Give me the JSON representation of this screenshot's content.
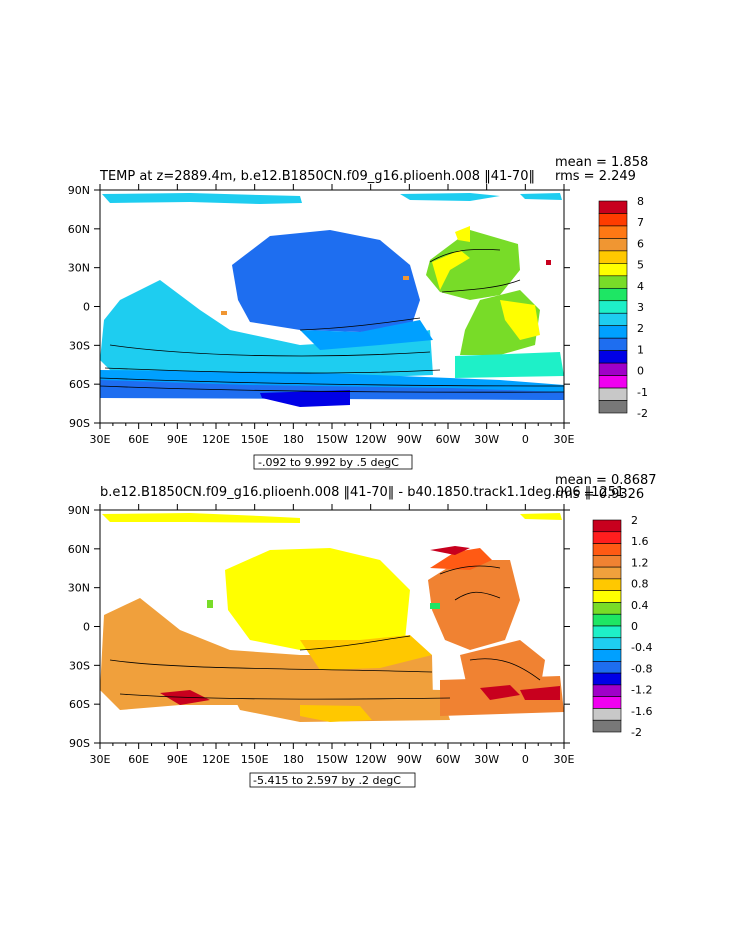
{
  "chart_data": [
    {
      "type": "heatmap",
      "title": "TEMP at z=2889.4m, b.e12.B1850CN.f09_g16.plioenh.008 ‖41-70‖",
      "mean_label": "mean = 1.858",
      "rms_label": "rms = 2.249",
      "range_label": "-.092 to 9.992 by .5 degC",
      "x_ticks": [
        "30E",
        "60E",
        "90E",
        "120E",
        "150E",
        "180",
        "150W",
        "120W",
        "90W",
        "60W",
        "30W",
        "0",
        "30E"
      ],
      "y_ticks": [
        "90N",
        "60N",
        "30N",
        "0",
        "30S",
        "60S",
        "90S"
      ],
      "colorbar": {
        "labels": [
          "8",
          "7",
          "6",
          "5",
          "4",
          "3",
          "2",
          "1",
          "0",
          "-1",
          "-2"
        ],
        "colors": [
          "#c8001e",
          "#ff3c00",
          "#ff7814",
          "#f09632",
          "#ffc800",
          "#ffff00",
          "#78dc28",
          "#1ee664",
          "#1ef0c8",
          "#1ecdf0",
          "#00a0ff",
          "#1e6ef0",
          "#0000e6",
          "#a000c8",
          "#f000f0",
          "#c8c8c8",
          "#787878"
        ]
      }
    },
    {
      "type": "heatmap",
      "title": "b.e12.B1850CN.f09_g16.plioenh.008 ‖41-70‖ - b40.1850.track1.1deg.006 ‖1251",
      "mean_label": "mean = 0.8687",
      "rms_label": "rms = 0.9326",
      "range_label": "-5.415 to 2.597 by .2 degC",
      "x_ticks": [
        "30E",
        "60E",
        "90E",
        "120E",
        "150E",
        "180",
        "150W",
        "120W",
        "90W",
        "60W",
        "30W",
        "0",
        "30E"
      ],
      "y_ticks": [
        "90N",
        "60N",
        "30N",
        "0",
        "30S",
        "60S",
        "90S"
      ],
      "colorbar": {
        "labels": [
          "2",
          "1.6",
          "1.2",
          "0.8",
          "0.4",
          "0",
          "-0.4",
          "-0.8",
          "-1.2",
          "-1.6",
          "-2"
        ],
        "colors": [
          "#c8001e",
          "#ff1e1e",
          "#ff5a14",
          "#f08232",
          "#f0a03c",
          "#ffc800",
          "#ffff00",
          "#78dc28",
          "#1ee664",
          "#1ef0c8",
          "#1ecdf0",
          "#00a0ff",
          "#1e6ef0",
          "#0000e6",
          "#a000c8",
          "#f000f0",
          "#c8c8c8",
          "#787878"
        ]
      }
    }
  ]
}
